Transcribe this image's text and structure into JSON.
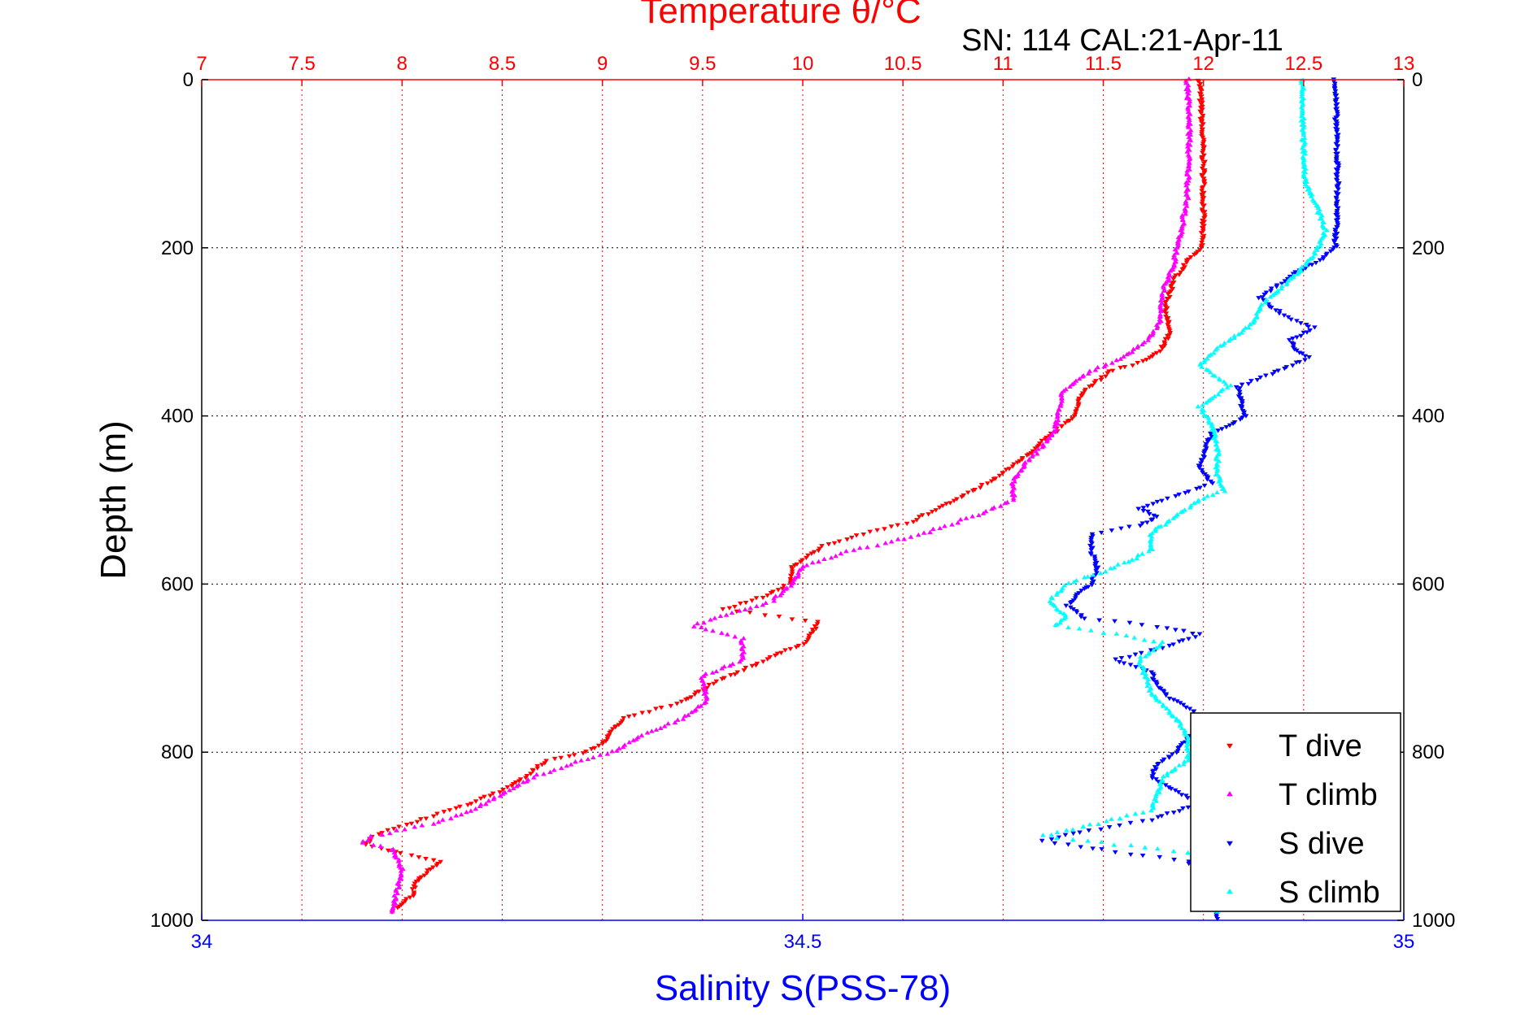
{
  "chart_data": {
    "type": "scatter",
    "title": "Temperature θ/°C",
    "subtitle": "SN: 114  CAL:21-Apr-11",
    "xlabel_top": "Temperature θ/°C",
    "xlabel_bottom": "Salinity S(PSS-78)",
    "ylabel": "Depth (m)",
    "temp_axis": {
      "range": [
        7,
        13
      ],
      "ticks": [
        "7",
        "7.5",
        "8",
        "8.5",
        "9",
        "9.5",
        "10",
        "10.5",
        "11",
        "11.5",
        "12",
        "12.5",
        "13"
      ]
    },
    "sal_axis": {
      "range": [
        34,
        35
      ],
      "ticks": [
        "34",
        "34.5",
        "35"
      ]
    },
    "depth_axis": {
      "range": [
        0,
        1000
      ],
      "reversed": true,
      "ticks": [
        "0",
        "200",
        "400",
        "600",
        "800",
        "1000"
      ]
    },
    "grid": true,
    "legend_position": "bottom-right",
    "series": [
      {
        "name": "T dive",
        "axis": "temp",
        "color": "#ff0000",
        "marker": "triangle-down",
        "points": [
          [
            11.98,
            0
          ],
          [
            11.99,
            40
          ],
          [
            12.0,
            100
          ],
          [
            12.0,
            160
          ],
          [
            11.99,
            200
          ],
          [
            11.92,
            215
          ],
          [
            11.85,
            240
          ],
          [
            11.81,
            270
          ],
          [
            11.83,
            300
          ],
          [
            11.79,
            320
          ],
          [
            11.7,
            335
          ],
          [
            11.55,
            345
          ],
          [
            11.4,
            370
          ],
          [
            11.35,
            400
          ],
          [
            11.2,
            430
          ],
          [
            11.05,
            460
          ],
          [
            10.92,
            480
          ],
          [
            10.75,
            500
          ],
          [
            10.55,
            525
          ],
          [
            10.3,
            540
          ],
          [
            10.1,
            555
          ],
          [
            9.95,
            580
          ],
          [
            9.93,
            600
          ],
          [
            9.8,
            615
          ],
          [
            9.6,
            630
          ],
          [
            10.08,
            645
          ],
          [
            10.02,
            668
          ],
          [
            9.72,
            700
          ],
          [
            9.53,
            720
          ],
          [
            9.4,
            740
          ],
          [
            9.1,
            760
          ],
          [
            9.0,
            790
          ],
          [
            8.9,
            800
          ],
          [
            8.72,
            810
          ],
          [
            8.55,
            840
          ],
          [
            8.35,
            860
          ],
          [
            8.1,
            880
          ],
          [
            7.85,
            900
          ],
          [
            7.82,
            910
          ],
          [
            8.0,
            920
          ],
          [
            8.2,
            930
          ],
          [
            8.08,
            950
          ],
          [
            8.05,
            970
          ],
          [
            7.95,
            990
          ]
        ]
      },
      {
        "name": "T climb",
        "axis": "temp",
        "color": "#ff00ff",
        "marker": "triangle-up",
        "points": [
          [
            11.92,
            0
          ],
          [
            11.93,
            60
          ],
          [
            11.92,
            140
          ],
          [
            11.88,
            190
          ],
          [
            11.85,
            220
          ],
          [
            11.8,
            250
          ],
          [
            11.78,
            290
          ],
          [
            11.72,
            310
          ],
          [
            11.6,
            330
          ],
          [
            11.42,
            350
          ],
          [
            11.3,
            370
          ],
          [
            11.27,
            400
          ],
          [
            11.26,
            420
          ],
          [
            11.18,
            440
          ],
          [
            11.1,
            460
          ],
          [
            11.05,
            480
          ],
          [
            11.05,
            500
          ],
          [
            10.85,
            520
          ],
          [
            10.6,
            540
          ],
          [
            10.45,
            550
          ],
          [
            10.25,
            560
          ],
          [
            10.0,
            580
          ],
          [
            9.95,
            600
          ],
          [
            9.85,
            620
          ],
          [
            9.45,
            650
          ],
          [
            9.7,
            665
          ],
          [
            9.7,
            690
          ],
          [
            9.5,
            710
          ],
          [
            9.52,
            740
          ],
          [
            9.4,
            760
          ],
          [
            9.2,
            780
          ],
          [
            9.05,
            800
          ],
          [
            8.9,
            810
          ],
          [
            8.65,
            830
          ],
          [
            8.5,
            850
          ],
          [
            8.35,
            870
          ],
          [
            8.15,
            885
          ],
          [
            7.85,
            900
          ],
          [
            7.8,
            908
          ],
          [
            7.95,
            915
          ],
          [
            8.0,
            940
          ],
          [
            7.98,
            960
          ],
          [
            7.95,
            990
          ]
        ]
      },
      {
        "name": "S dive",
        "axis": "sal",
        "color": "#0000ff",
        "marker": "triangle-down",
        "points": [
          [
            34.943,
            0
          ],
          [
            34.944,
            60
          ],
          [
            34.945,
            120
          ],
          [
            34.944,
            170
          ],
          [
            34.943,
            200
          ],
          [
            34.93,
            215
          ],
          [
            34.915,
            225
          ],
          [
            34.9,
            240
          ],
          [
            34.88,
            260
          ],
          [
            34.9,
            280
          ],
          [
            34.925,
            295
          ],
          [
            34.905,
            310
          ],
          [
            34.91,
            320
          ],
          [
            34.92,
            330
          ],
          [
            34.89,
            350
          ],
          [
            34.862,
            365
          ],
          [
            34.865,
            385
          ],
          [
            34.868,
            400
          ],
          [
            34.85,
            415
          ],
          [
            34.84,
            420
          ],
          [
            34.835,
            440
          ],
          [
            34.83,
            460
          ],
          [
            34.84,
            480
          ],
          [
            34.8,
            500
          ],
          [
            34.78,
            510
          ],
          [
            34.795,
            520
          ],
          [
            34.78,
            530
          ],
          [
            34.74,
            540
          ],
          [
            34.74,
            560
          ],
          [
            34.745,
            580
          ],
          [
            34.74,
            600
          ],
          [
            34.73,
            610
          ],
          [
            34.72,
            625
          ],
          [
            34.735,
            640
          ],
          [
            34.795,
            650
          ],
          [
            34.83,
            660
          ],
          [
            34.8,
            675
          ],
          [
            34.76,
            690
          ],
          [
            34.79,
            705
          ],
          [
            34.795,
            720
          ],
          [
            34.805,
            735
          ],
          [
            34.825,
            750
          ],
          [
            34.83,
            770
          ],
          [
            34.81,
            800
          ],
          [
            34.795,
            815
          ],
          [
            34.79,
            830
          ],
          [
            34.815,
            850
          ],
          [
            34.83,
            860
          ],
          [
            34.79,
            880
          ],
          [
            34.73,
            895
          ],
          [
            34.7,
            905
          ],
          [
            34.76,
            918
          ],
          [
            34.82,
            930
          ],
          [
            34.84,
            950
          ],
          [
            34.845,
            970
          ],
          [
            34.845,
            998
          ]
        ]
      },
      {
        "name": "S climb",
        "axis": "sal",
        "color": "#00ffff",
        "marker": "triangle-up",
        "points": [
          [
            34.915,
            0
          ],
          [
            34.916,
            60
          ],
          [
            34.918,
            120
          ],
          [
            34.93,
            160
          ],
          [
            34.935,
            180
          ],
          [
            34.925,
            210
          ],
          [
            34.905,
            240
          ],
          [
            34.88,
            270
          ],
          [
            34.875,
            290
          ],
          [
            34.86,
            305
          ],
          [
            34.845,
            320
          ],
          [
            34.83,
            340
          ],
          [
            34.855,
            365
          ],
          [
            34.83,
            390
          ],
          [
            34.84,
            410
          ],
          [
            34.845,
            440
          ],
          [
            34.845,
            470
          ],
          [
            34.85,
            490
          ],
          [
            34.83,
            500
          ],
          [
            34.81,
            520
          ],
          [
            34.79,
            540
          ],
          [
            34.79,
            560
          ],
          [
            34.76,
            580
          ],
          [
            34.72,
            600
          ],
          [
            34.705,
            620
          ],
          [
            34.72,
            640
          ],
          [
            34.71,
            650
          ],
          [
            34.76,
            660
          ],
          [
            34.8,
            670
          ],
          [
            34.78,
            690
          ],
          [
            34.785,
            710
          ],
          [
            34.79,
            730
          ],
          [
            34.81,
            760
          ],
          [
            34.82,
            780
          ],
          [
            34.82,
            810
          ],
          [
            34.8,
            830
          ],
          [
            34.795,
            850
          ],
          [
            34.79,
            870
          ],
          [
            34.745,
            885
          ],
          [
            34.7,
            900
          ],
          [
            34.76,
            910
          ],
          [
            34.82,
            920
          ],
          [
            34.845,
            935
          ],
          [
            34.84,
            960
          ],
          [
            34.845,
            990
          ]
        ]
      }
    ]
  }
}
